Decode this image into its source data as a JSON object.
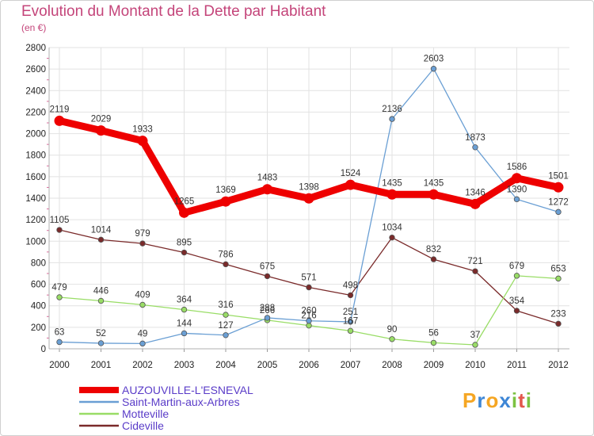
{
  "title": "Evolution du Montant de la Dette par Habitant",
  "subtitle": "(en €)",
  "logo": {
    "text": "Proxiti",
    "letters": [
      "P",
      "r",
      "o",
      "x",
      "i",
      "t",
      "i"
    ],
    "colors": [
      "#f5a623",
      "#3d86d6",
      "#f5a623",
      "#3d86d6",
      "#7cc242",
      "#e2574c",
      "#7cc242"
    ]
  },
  "chart_data": {
    "type": "line",
    "title": "Evolution du Montant de la Dette par Habitant",
    "ylabel": "(en €)",
    "xlabel": "",
    "ylim": [
      0,
      2800
    ],
    "yticks": [
      "0",
      "200",
      "400",
      "600",
      "800",
      "1000",
      "1200",
      "1400",
      "1600",
      "1800",
      "2000",
      "2200",
      "2400",
      "2600",
      "2800"
    ],
    "categories": [
      "2000",
      "2001",
      "2002",
      "2003",
      "2004",
      "2005",
      "2006",
      "2007",
      "2008",
      "2009",
      "2010",
      "2011",
      "2012"
    ],
    "series": [
      {
        "name": "Cideville",
        "color": "#7a2a2a",
        "values": [
          1105,
          1014,
          979,
          895,
          786,
          675,
          571,
          498,
          1034,
          832,
          721,
          354,
          233
        ],
        "labels": [
          "1105",
          "1014",
          "979",
          "895",
          "786",
          "675",
          "571",
          "498",
          "1034",
          "832",
          "721",
          "354",
          "233"
        ]
      },
      {
        "name": "Motteville",
        "color": "#99dd66",
        "values": [
          479,
          446,
          409,
          364,
          316,
          266,
          216,
          167,
          90,
          56,
          37,
          679,
          653
        ],
        "labels": [
          "479",
          "446",
          "409",
          "364",
          "316",
          "266",
          "216",
          "167",
          "90",
          "56",
          "37",
          "679",
          "653"
        ]
      },
      {
        "name": "Saint-Martin-aux-Arbres",
        "color": "#6a9fd4",
        "values": [
          63,
          52,
          49,
          144,
          127,
          288,
          260,
          251,
          2136,
          2603,
          1873,
          1390,
          1272
        ],
        "labels": [
          "63",
          "52",
          "49",
          "144",
          "127",
          "288",
          "260",
          "251",
          "2136",
          "2603",
          "1873",
          "1390",
          "1272"
        ]
      },
      {
        "name": "AUZOUVILLE-L'ESNEVAL",
        "color": "#ee0000",
        "values": [
          2119,
          2029,
          1933,
          1265,
          1369,
          1483,
          1398,
          1524,
          1435,
          1435,
          1346,
          1586,
          1501
        ],
        "labels": [
          "2119",
          "2029",
          "1933",
          "1265",
          "1369",
          "1483",
          "1398",
          "1524",
          "1435",
          "1435",
          "1346",
          "1586",
          "1501"
        ]
      }
    ],
    "legend": [
      {
        "name": "AUZOUVILLE-L'ESNEVAL",
        "color": "#ee0000",
        "text_color": "#5a3cc8"
      },
      {
        "name": "Saint-Martin-aux-Arbres",
        "color": "#6a9fd4",
        "text_color": "#5a3cc8"
      },
      {
        "name": "Motteville",
        "color": "#99dd66",
        "text_color": "#5a3cc8"
      },
      {
        "name": "Cideville",
        "color": "#7a2a2a",
        "text_color": "#5a3cc8"
      }
    ],
    "legend_position": "bottom-left",
    "grid": true
  }
}
